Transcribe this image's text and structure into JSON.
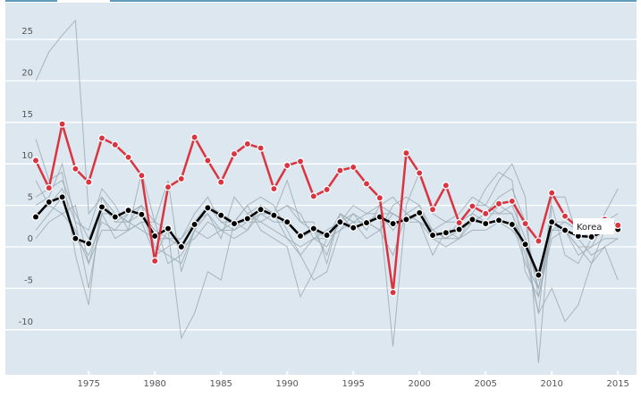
{
  "chart_data": {
    "type": "line",
    "title": "",
    "xlabel": "",
    "ylabel": "",
    "xlim": [
      1971,
      2015
    ],
    "ylim": [
      -15,
      27
    ],
    "grid": true,
    "x_ticks": [
      "1975",
      "1980",
      "1985",
      "1990",
      "1995",
      "2000",
      "2005",
      "2010",
      "2015"
    ],
    "y_ticks": [
      "25",
      "20",
      "15",
      "10",
      "5",
      "0",
      "-5",
      "-10"
    ],
    "x": [
      1971,
      1972,
      1973,
      1974,
      1975,
      1976,
      1977,
      1978,
      1979,
      1980,
      1981,
      1982,
      1983,
      1984,
      1985,
      1986,
      1987,
      1988,
      1989,
      1990,
      1991,
      1992,
      1993,
      1994,
      1995,
      1996,
      1997,
      1998,
      1999,
      2000,
      2001,
      2002,
      2003,
      2004,
      2005,
      2006,
      2007,
      2008,
      2009,
      2010,
      2011,
      2012,
      2013,
      2014,
      2015
    ],
    "highlight": {
      "name": "Korea",
      "color": "#d9343f",
      "values": [
        10.4,
        7.1,
        14.8,
        9.4,
        7.8,
        13.1,
        12.3,
        10.8,
        8.6,
        -1.7,
        7.2,
        8.2,
        13.2,
        10.4,
        7.8,
        11.2,
        12.4,
        11.9,
        7.0,
        9.8,
        10.3,
        6.1,
        6.9,
        9.2,
        9.6,
        7.6,
        5.9,
        -5.5,
        11.3,
        8.9,
        4.5,
        7.4,
        2.9,
        4.9,
        4.0,
        5.2,
        5.5,
        2.8,
        0.7,
        6.5,
        3.7,
        2.3,
        2.9,
        3.3,
        2.6
      ]
    },
    "average": {
      "color": "#000000",
      "values": [
        3.6,
        5.4,
        6.0,
        1.0,
        0.4,
        4.8,
        3.6,
        4.4,
        3.9,
        1.3,
        2.2,
        0.0,
        2.7,
        4.7,
        3.8,
        2.8,
        3.4,
        4.5,
        3.8,
        3.0,
        1.3,
        2.2,
        1.4,
        3.0,
        2.3,
        2.9,
        3.6,
        2.8,
        3.3,
        4.1,
        1.4,
        1.7,
        2.1,
        3.3,
        2.8,
        3.2,
        2.7,
        0.3,
        -3.4,
        3.0,
        2.0,
        1.3,
        1.2,
        1.9,
        2.1
      ]
    },
    "other_series_color": "#9eabb5",
    "other_series": [
      [
        20,
        23.5,
        25.5,
        27.3,
        4,
        6,
        3,
        4,
        5,
        3,
        2,
        -11,
        -8,
        -3,
        -4,
        3,
        5,
        2,
        1,
        0,
        -6,
        -3,
        1,
        3,
        4,
        2,
        5,
        4,
        3,
        4,
        2,
        1,
        3,
        4,
        3,
        5,
        4,
        0,
        -8,
        -5,
        -9,
        -7,
        -2,
        2,
        3
      ],
      [
        13,
        8,
        9,
        -1,
        -7,
        6,
        4,
        3,
        5,
        -1,
        0,
        1,
        3,
        5,
        3,
        2,
        4,
        5,
        4,
        8,
        3,
        2,
        -1,
        4,
        3,
        4,
        5,
        6,
        4,
        3,
        1,
        1,
        2,
        3,
        4,
        6,
        7,
        3,
        -6,
        2,
        3,
        2,
        1,
        2,
        3
      ],
      [
        6,
        7,
        8,
        4,
        1,
        5,
        3,
        3,
        4,
        2,
        1,
        0,
        3,
        4,
        2,
        3,
        2,
        4,
        3,
        3,
        1,
        2,
        1,
        4,
        3,
        3,
        4,
        -12,
        5,
        9,
        4,
        3,
        3,
        5,
        5,
        8,
        10,
        6,
        -14,
        5,
        -1,
        -2,
        1,
        4,
        7
      ],
      [
        2,
        4,
        6,
        1,
        -1,
        3,
        2,
        4,
        5,
        0,
        -1,
        -2,
        2,
        5,
        4,
        3,
        5,
        6,
        5,
        2,
        -1,
        1,
        0,
        3,
        2,
        3,
        2,
        5,
        6,
        5,
        2,
        3,
        4,
        6,
        5,
        4,
        5,
        1,
        -5,
        2,
        2,
        0,
        0,
        1,
        1
      ],
      [
        4,
        5,
        4,
        2,
        -2,
        4,
        4,
        3,
        2,
        1,
        1,
        1,
        4,
        6,
        3,
        3,
        3,
        4,
        4,
        5,
        3,
        3,
        -2,
        4,
        2,
        3,
        4,
        4,
        3,
        4,
        1,
        2,
        2,
        3,
        3,
        3,
        2,
        0,
        -4,
        3,
        3,
        2,
        2,
        2,
        2
      ],
      [
        8,
        5,
        7,
        3,
        2,
        7,
        5,
        2,
        3,
        -1,
        2,
        0,
        1,
        3,
        2,
        2,
        3,
        3,
        4,
        5,
        4,
        1,
        2,
        3,
        5,
        4,
        4,
        2,
        4,
        5,
        1,
        0,
        1,
        3,
        4,
        4,
        4,
        -1,
        -8,
        6,
        6,
        1,
        -1,
        0,
        -4
      ],
      [
        5,
        6,
        10,
        3,
        -5,
        4,
        1,
        2,
        3,
        3,
        -2,
        -1,
        2,
        4,
        1,
        6,
        4,
        3,
        2,
        1,
        -1,
        -4,
        -3,
        2,
        4,
        3,
        2,
        4,
        3,
        3,
        -1,
        2,
        1,
        4,
        7,
        9,
        8,
        -3,
        -6,
        1,
        2,
        -1,
        0,
        3,
        4
      ],
      [
        1,
        3,
        4,
        5,
        -2,
        2,
        2,
        2,
        9,
        3,
        8,
        -3,
        2,
        1,
        2,
        1,
        2,
        5,
        4,
        1,
        0,
        1,
        1,
        2,
        3,
        1,
        2,
        -1,
        4,
        3,
        2,
        1,
        1,
        2,
        2,
        3,
        3,
        -2,
        -5,
        3,
        2,
        0,
        -2,
        0,
        1
      ]
    ],
    "colors": {
      "background": "#dce7ef",
      "grid": "#ffffff",
      "header_line": "#2a7aa8"
    }
  }
}
